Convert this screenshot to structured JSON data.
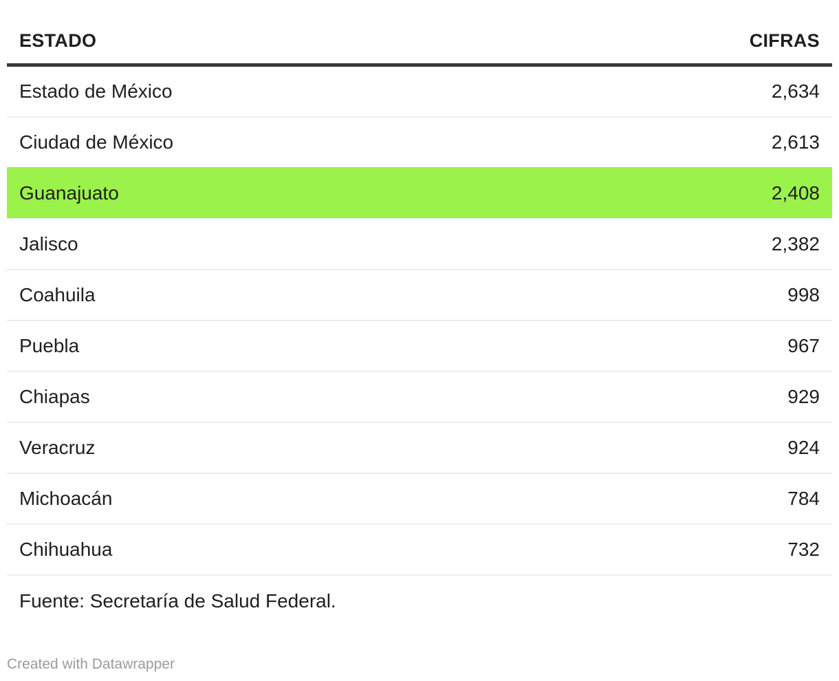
{
  "table": {
    "columns": [
      {
        "label": "ESTADO",
        "align": "left"
      },
      {
        "label": "CIFRAS",
        "align": "right"
      }
    ],
    "rows": [
      {
        "estado": "Estado de México",
        "cifras": "2,634",
        "highlight": false
      },
      {
        "estado": "Ciudad de México",
        "cifras": "2,613",
        "highlight": false
      },
      {
        "estado": "Guanajuato",
        "cifras": "2,408",
        "highlight": true
      },
      {
        "estado": "Jalisco",
        "cifras": "2,382",
        "highlight": false
      },
      {
        "estado": "Coahuila",
        "cifras": "998",
        "highlight": false
      },
      {
        "estado": "Puebla",
        "cifras": "967",
        "highlight": false
      },
      {
        "estado": "Chiapas",
        "cifras": "929",
        "highlight": false
      },
      {
        "estado": "Veracruz",
        "cifras": "924",
        "highlight": false
      },
      {
        "estado": "Michoacán",
        "cifras": "784",
        "highlight": false
      },
      {
        "estado": "Chihuahua",
        "cifras": "732",
        "highlight": false
      }
    ]
  },
  "footer": {
    "source": "Fuente: Secretaría de Salud Federal.",
    "attribution": "Created with Datawrapper"
  },
  "colors": {
    "highlight": "#9bf24b",
    "text": "#1f1f1f",
    "separator": "#ededed",
    "header_border": "#383838",
    "muted": "#9b9b9b"
  },
  "chart_data": {
    "type": "table",
    "title": "",
    "columns": [
      "ESTADO",
      "CIFRAS"
    ],
    "rows": [
      [
        "Estado de México",
        2634
      ],
      [
        "Ciudad de México",
        2613
      ],
      [
        "Guanajuato",
        2408
      ],
      [
        "Jalisco",
        2382
      ],
      [
        "Coahuila",
        998
      ],
      [
        "Puebla",
        967
      ],
      [
        "Chiapas",
        929
      ],
      [
        "Veracruz",
        924
      ],
      [
        "Michoacán",
        784
      ],
      [
        "Chihuahua",
        732
      ]
    ],
    "highlighted_row": "Guanajuato",
    "highlight_color": "#9bf24b",
    "source": "Fuente: Secretaría de Salud Federal.",
    "attribution": "Created with Datawrapper"
  }
}
